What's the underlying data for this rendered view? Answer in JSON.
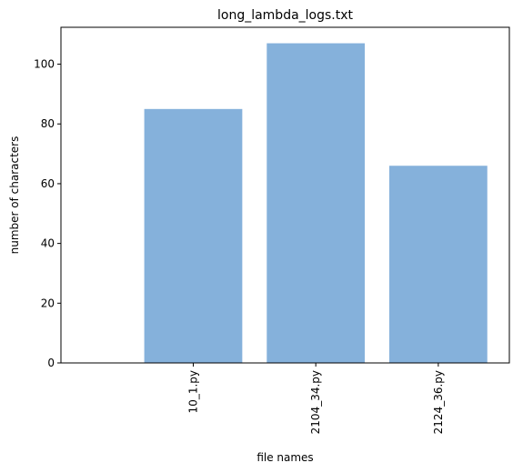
{
  "chart_data": {
    "type": "bar",
    "title": "long_lambda_logs.txt",
    "xlabel": "file names",
    "ylabel": "number of characters",
    "categories": [
      "10_1.py",
      "2104_34.py",
      "2124_36.py"
    ],
    "values": [
      85,
      107,
      66
    ],
    "ylim": [
      0,
      112.35
    ],
    "yticks": [
      0,
      20,
      40,
      60,
      80,
      100
    ],
    "grid": false,
    "bar_color": "#85b1db",
    "x_tick_rotation": "vertical"
  }
}
